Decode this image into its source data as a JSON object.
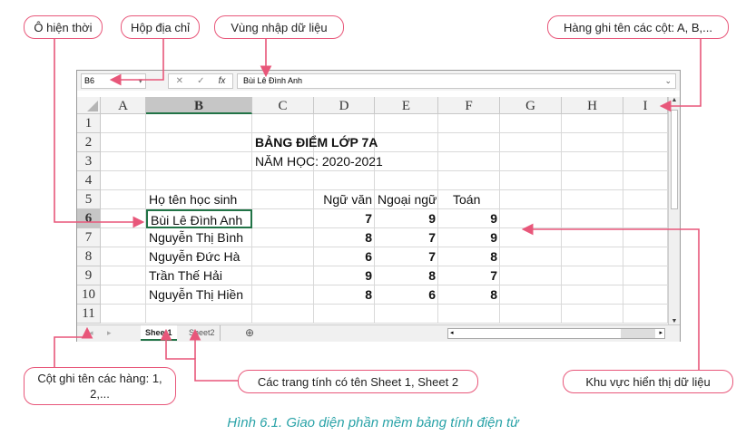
{
  "callouts": {
    "current_cell": "Ô hiện thời",
    "name_box": "Hộp địa chỉ",
    "formula_bar": "Vùng nhập dữ liệu",
    "column_headers": "Hàng ghi tên các cột: A, B,...",
    "row_headers": "Cột ghi tên các hàng: 1, 2,...",
    "sheets": "Các trang tính có tên Sheet 1, Sheet 2",
    "data_area": "Khu vực hiển thị dữ liệu"
  },
  "excel": {
    "name_box": "B6",
    "formula": "Bùi Lê Đình Anh",
    "fx_buttons": [
      "✕",
      "✓",
      "fx"
    ],
    "columns": [
      "A",
      "B",
      "C",
      "D",
      "E",
      "F",
      "G",
      "H",
      "I"
    ],
    "rows": [
      "1",
      "2",
      "3",
      "4",
      "5",
      "6",
      "7",
      "8",
      "9",
      "10",
      "11"
    ],
    "selected_column": "B",
    "selected_row": "6",
    "title": "BẢNG ĐIỂM LỚP 7A",
    "year": "NĂM HỌC: 2020-2021",
    "headers": [
      "Họ tên học sinh",
      "Ngữ văn",
      "Ngoại ngữ",
      "Toán"
    ],
    "students": [
      [
        "Bùi Lê Đình Anh",
        "7",
        "9",
        "9"
      ],
      [
        "Nguyễn Thị Bình",
        "8",
        "7",
        "9"
      ],
      [
        "Nguyễn Đức Hà",
        "6",
        "7",
        "8"
      ],
      [
        "Trần Thế Hải",
        "9",
        "8",
        "7"
      ],
      [
        "Nguyễn Thị Hiền",
        "8",
        "6",
        "8"
      ]
    ],
    "sheets": [
      "Sheet1",
      "Sheet2"
    ],
    "active_sheet": "Sheet1"
  },
  "caption": "Hình 6.1. Giao diện phần mềm bảng tính điện tử",
  "colors": {
    "callout": "#e8577a",
    "caption": "#2aa3a8",
    "excel_green": "#217346"
  }
}
